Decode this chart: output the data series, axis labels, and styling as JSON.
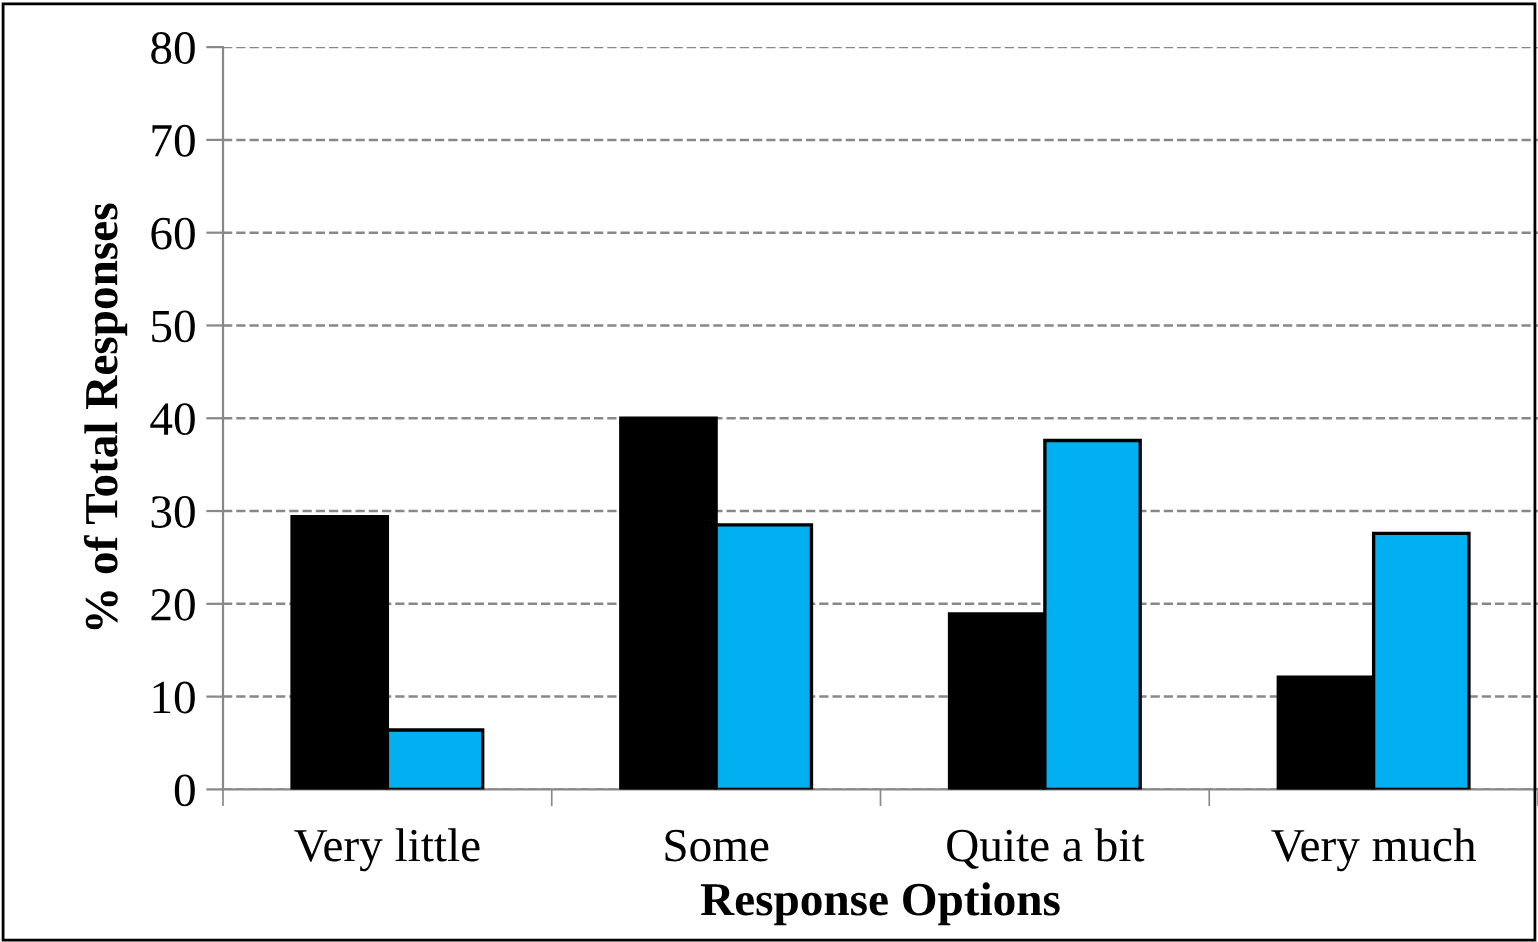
{
  "chart_data": {
    "type": "bar",
    "xlabel": "Response Options",
    "ylabel": "% of Total Responses",
    "categories": [
      "Very little",
      "Some",
      "Quite a bit",
      "Very much"
    ],
    "series": [
      {
        "color": "#000000",
        "values": [
          29.4,
          40.0,
          18.9,
          12.1
        ]
      },
      {
        "color": "#00b0f0",
        "values": [
          6.4,
          28.5,
          37.6,
          27.6
        ]
      }
    ],
    "ylim": [
      0,
      80
    ],
    "yticks": [
      0,
      10,
      20,
      30,
      40,
      50,
      60,
      70,
      80
    ],
    "grid": "y",
    "legend": false
  }
}
